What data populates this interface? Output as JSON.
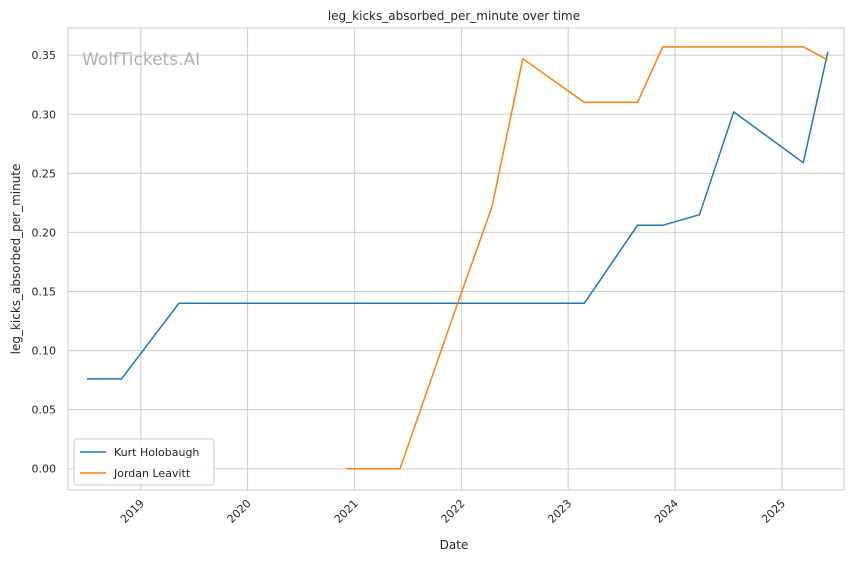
{
  "watermark": "WolfTickets.AI",
  "chart_data": {
    "type": "line",
    "title": "leg_kicks_absorbed_per_minute over time",
    "xlabel": "Date",
    "ylabel": "leg_kicks_absorbed_per_minute",
    "xlim": [
      "2018-04-27",
      "2025-08-01"
    ],
    "ylim": [
      -0.018,
      0.373
    ],
    "x_ticks": [
      "2019-01-01",
      "2020-01-01",
      "2021-01-01",
      "2022-01-01",
      "2023-01-01",
      "2024-01-01",
      "2025-01-01"
    ],
    "x_tick_labels": [
      "2019",
      "2020",
      "2021",
      "2022",
      "2023",
      "2024",
      "2025"
    ],
    "y_ticks": [
      0.0,
      0.05,
      0.1,
      0.15,
      0.2,
      0.25,
      0.3,
      0.35
    ],
    "y_tick_labels": [
      "0.00",
      "0.05",
      "0.10",
      "0.15",
      "0.20",
      "0.25",
      "0.30",
      "0.35"
    ],
    "grid": true,
    "legend_position": "lower-left",
    "series": [
      {
        "name": "Kurt Holobaugh",
        "color": "#1f77b4",
        "points": [
          {
            "x": "2018-07-01",
            "y": 0.076
          },
          {
            "x": "2018-10-27",
            "y": 0.076
          },
          {
            "x": "2019-05-11",
            "y": 0.14
          },
          {
            "x": "2023-02-25",
            "y": 0.14
          },
          {
            "x": "2023-08-26",
            "y": 0.206
          },
          {
            "x": "2023-11-20",
            "y": 0.206
          },
          {
            "x": "2024-03-25",
            "y": 0.215
          },
          {
            "x": "2024-07-20",
            "y": 0.302
          },
          {
            "x": "2025-03-15",
            "y": 0.259
          },
          {
            "x": "2025-06-07",
            "y": 0.353
          }
        ]
      },
      {
        "name": "Jordan Leavitt",
        "color": "#ff7f0e",
        "points": [
          {
            "x": "2020-12-05",
            "y": 0.0
          },
          {
            "x": "2021-06-05",
            "y": 0.0
          },
          {
            "x": "2021-12-05",
            "y": 0.13
          },
          {
            "x": "2022-04-16",
            "y": 0.222
          },
          {
            "x": "2022-07-30",
            "y": 0.347
          },
          {
            "x": "2023-02-25",
            "y": 0.31
          },
          {
            "x": "2023-08-26",
            "y": 0.31
          },
          {
            "x": "2023-11-20",
            "y": 0.357
          },
          {
            "x": "2025-03-15",
            "y": 0.357
          },
          {
            "x": "2025-06-07",
            "y": 0.346
          }
        ]
      }
    ]
  }
}
